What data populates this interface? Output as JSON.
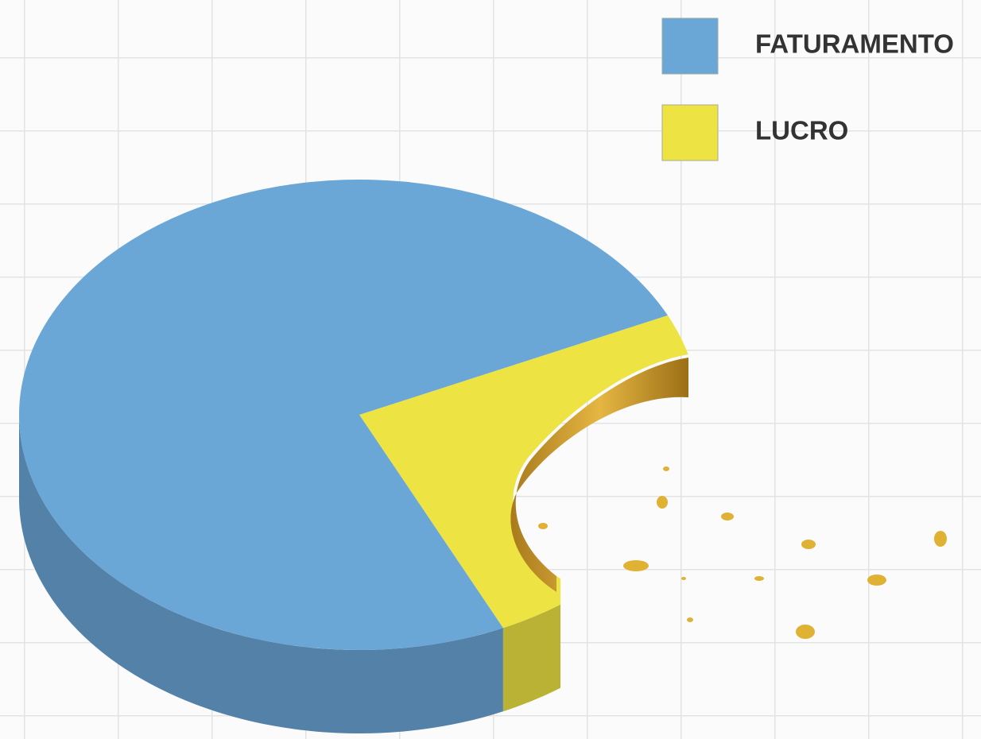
{
  "chart_data": {
    "type": "pie",
    "categories": [
      "FATURAMENTO",
      "LUCRO"
    ],
    "values": [
      75,
      25
    ],
    "colors": [
      "#6aa6d6",
      "#ede443"
    ],
    "start_angle": -25
  }
}
